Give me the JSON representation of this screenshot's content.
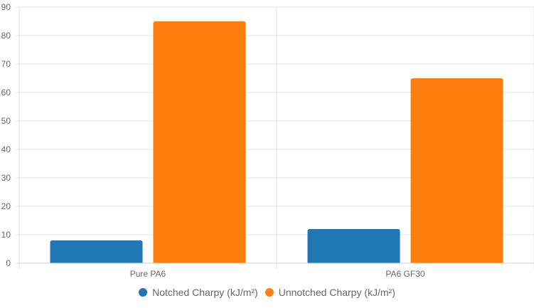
{
  "chart_data": {
    "type": "bar",
    "title": "",
    "xlabel": "",
    "ylabel": "",
    "categories": [
      "Pure PA6",
      "PA6 GF30"
    ],
    "series": [
      {
        "name": "Notched Charpy (kJ/m²)",
        "color": "#1f77b4",
        "values": [
          8,
          12
        ]
      },
      {
        "name": "Unnotched Charpy (kJ/m²)",
        "color": "#ff7f0e",
        "values": [
          85,
          65
        ]
      }
    ],
    "ylim": [
      0,
      90
    ],
    "yticks": [
      0,
      10,
      20,
      30,
      40,
      50,
      60,
      70,
      80,
      90
    ],
    "grid": true,
    "legend_position": "bottom"
  },
  "legend": {
    "items": [
      {
        "label": "Notched Charpy (kJ/m²)",
        "color": "#1f77b4"
      },
      {
        "label": "Unnotched Charpy (kJ/m²)",
        "color": "#ff7f0e"
      }
    ]
  }
}
